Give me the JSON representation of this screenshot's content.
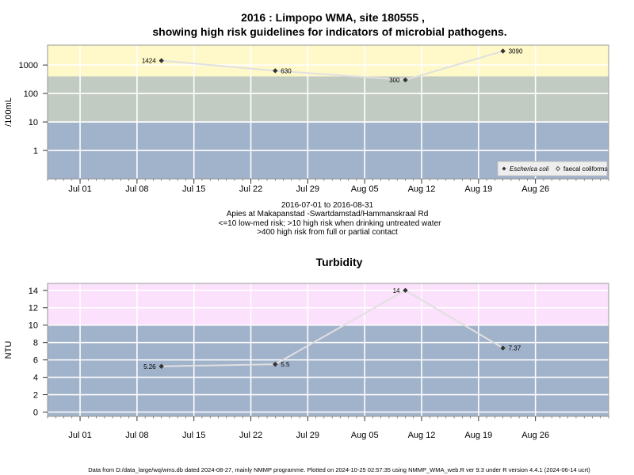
{
  "header": {
    "title_line1": "2016 : Limpopo WMA, site 180555 ,",
    "title_line2": "showing high risk guidelines for indicators of microbial pathogens."
  },
  "info": {
    "line1": "2016-07-01 to 2016-08-31",
    "line2": "Apies at Makapanstad -Swartdamstad/Hammanskraal Rd",
    "line3": "<=10 low-med risk; >10 high risk when drinking untreated water",
    "line4": ">400 high risk from full or partial contact"
  },
  "footer": {
    "text": "Data from D:/data_large/wq/wms.db dated 2024-08-27, mainly NMMP programme. Plotted on 2024-10-25 02:57:35 using NMMP_WMA_web.R ver 9.3 under R version 4.4.1 (2024-06-14 ucrt)"
  },
  "colors": {
    "band_low": "#a1b2cb",
    "band_mid": "#c2cbc2",
    "band_high": "#fff8c9",
    "band_turbidity_high": "#fbe1fb",
    "line": "#e0e0e0",
    "marker": "#333333",
    "grid": "#ffffff"
  },
  "chart_data": [
    {
      "type": "line",
      "title": "",
      "ylabel": "/100mL",
      "xlabel": "",
      "yscale": "log",
      "xlim": [
        "2016-06-27",
        "2016-09-04"
      ],
      "ylim": [
        0.1,
        5000
      ],
      "y_ticks": [
        1,
        10,
        100,
        1000
      ],
      "y_tick_labels": [
        "1",
        "10",
        "100",
        "1000"
      ],
      "x_ticks": [
        "2016-07-01",
        "2016-07-08",
        "2016-07-15",
        "2016-07-22",
        "2016-07-29",
        "2016-08-05",
        "2016-08-12",
        "2016-08-19",
        "2016-08-26"
      ],
      "x_tick_labels": [
        "Jul 01",
        "Jul 08",
        "Jul 15",
        "Jul 22",
        "Jul 29",
        "Aug 05",
        "Aug 12",
        "Aug 19",
        "Aug 26"
      ],
      "bands": [
        {
          "from": 0.1,
          "to": 10,
          "color": "#a1b2cb"
        },
        {
          "from": 10,
          "to": 400,
          "color": "#c2cbc2"
        },
        {
          "from": 400,
          "to": 5000,
          "color": "#fff8c9"
        }
      ],
      "series": [
        {
          "name": "Escherichia coli",
          "x": [
            "2016-07-11",
            "2016-07-25",
            "2016-08-10",
            "2016-08-22"
          ],
          "values": [
            1424,
            630,
            300,
            3090
          ],
          "labels": [
            "1424",
            "630",
            "300",
            "3090"
          ]
        }
      ],
      "legend": {
        "placement": "bottom-right",
        "entries": [
          "Escherica coli",
          "faecal coliforms"
        ]
      },
      "grid": true
    },
    {
      "type": "line",
      "title": "Turbidity",
      "ylabel": "NTU",
      "xlabel": "",
      "xlim": [
        "2016-06-27",
        "2016-09-04"
      ],
      "ylim": [
        -0.5,
        14.8
      ],
      "y_ticks": [
        0,
        2,
        4,
        6,
        8,
        10,
        12,
        14
      ],
      "y_tick_labels": [
        "0",
        "2",
        "4",
        "6",
        "8",
        "10",
        "12",
        "14"
      ],
      "x_ticks": [
        "2016-07-01",
        "2016-07-08",
        "2016-07-15",
        "2016-07-22",
        "2016-07-29",
        "2016-08-05",
        "2016-08-12",
        "2016-08-19",
        "2016-08-26"
      ],
      "x_tick_labels": [
        "Jul 01",
        "Jul 08",
        "Jul 15",
        "Jul 22",
        "Jul 29",
        "Aug 05",
        "Aug 12",
        "Aug 19",
        "Aug 26"
      ],
      "bands": [
        {
          "from": -0.5,
          "to": 10,
          "color": "#a1b2cb"
        },
        {
          "from": 10,
          "to": 14.8,
          "color": "#fbe1fb"
        }
      ],
      "series": [
        {
          "name": "",
          "x": [
            "2016-07-11",
            "2016-07-25",
            "2016-08-10",
            "2016-08-22"
          ],
          "values": [
            5.26,
            5.5,
            14,
            7.37
          ],
          "labels": [
            "5.26",
            "5.5",
            "14",
            "7.37"
          ]
        }
      ],
      "grid": true
    }
  ]
}
